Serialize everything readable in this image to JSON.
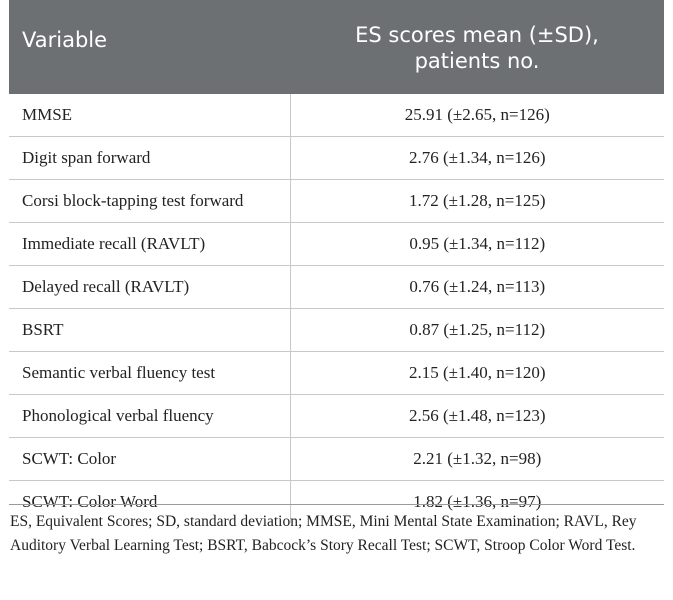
{
  "table": {
    "headers": [
      "Variable",
      "ES scores mean (±SD),",
      "patients no."
    ],
    "rows": [
      {
        "variable": "MMSE",
        "value": "25.91 (±2.65, n=126)"
      },
      {
        "variable": "Digit span forward",
        "value": "2.76 (±1.34, n=126)"
      },
      {
        "variable": "Corsi block-tapping test forward",
        "value": "1.72 (±1.28, n=125)"
      },
      {
        "variable": "Immediate recall (RAVLT)",
        "value": "0.95 (±1.34, n=112)"
      },
      {
        "variable": "Delayed recall (RAVLT)",
        "value": "0.76 (±1.24, n=113)"
      },
      {
        "variable": "BSRT",
        "value": "0.87 (±1.25, n=112)"
      },
      {
        "variable": "Semantic verbal fluency test",
        "value": "2.15 (±1.40, n=120)"
      },
      {
        "variable": "Phonological verbal fluency",
        "value": "2.56 (±1.48, n=123)"
      },
      {
        "variable": "SCWT: Color",
        "value": "2.21 (±1.32, n=98)"
      },
      {
        "variable": "SCWT: Color Word",
        "value": "1.82 (±1.36, n=97)"
      }
    ]
  },
  "footnote": "ES, Equivalent Scores; SD, standard deviation; MMSE, Mini Mental State Examination; RAVL, Rey Auditory Verbal Learning Test; BSRT, Babcock’s Story Recall Test; SCWT, Stroop Color Word Test."
}
